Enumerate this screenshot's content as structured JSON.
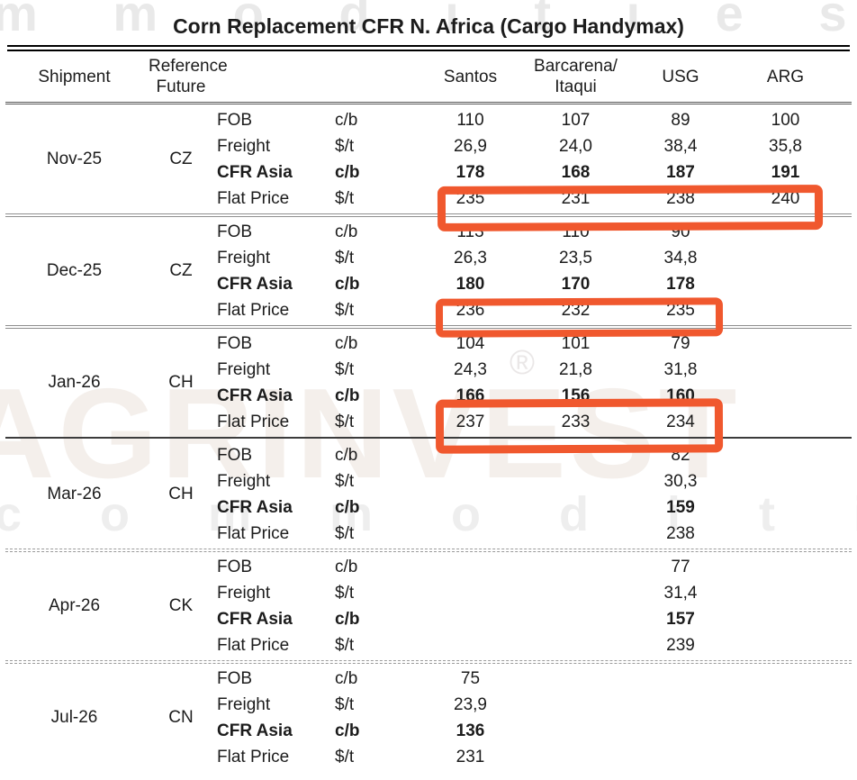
{
  "title": "Corn Replacement CFR N. Africa (Cargo Handymax)",
  "accent_color": "#f0582e",
  "watermark": {
    "top_text": "m m o d i t i e s",
    "brand_text": "AGRINVEST",
    "bottom_text": "c o m m o d i t i e s",
    "registered_mark": "®"
  },
  "header": {
    "shipment": "Shipment",
    "reference": "Reference\nFuture",
    "destinations": [
      "Santos",
      "Barcarena/\nItaqui",
      "USG",
      "ARG"
    ]
  },
  "blocks": [
    {
      "shipment": "Nov-25",
      "reference": "CZ",
      "rows": [
        {
          "label": "FOB",
          "unit": "c/b",
          "bold": false,
          "values": [
            "110",
            "107",
            "89",
            "100"
          ]
        },
        {
          "label": "Freight",
          "unit": "$/t",
          "bold": false,
          "values": [
            "26,9",
            "24,0",
            "38,4",
            "35,8"
          ]
        },
        {
          "label": "CFR Asia",
          "unit": "c/b",
          "bold": true,
          "values": [
            "178",
            "168",
            "187",
            "191"
          ]
        },
        {
          "label": "Flat Price",
          "unit": "$/t",
          "bold": false,
          "values": [
            "235",
            "231",
            "238",
            "240"
          ]
        }
      ]
    },
    {
      "shipment": "Dec-25",
      "reference": "CZ",
      "rows": [
        {
          "label": "FOB",
          "unit": "c/b",
          "bold": false,
          "values": [
            "113",
            "110",
            "90",
            ""
          ]
        },
        {
          "label": "Freight",
          "unit": "$/t",
          "bold": false,
          "values": [
            "26,3",
            "23,5",
            "34,8",
            ""
          ]
        },
        {
          "label": "CFR Asia",
          "unit": "c/b",
          "bold": true,
          "values": [
            "180",
            "170",
            "178",
            ""
          ]
        },
        {
          "label": "Flat Price",
          "unit": "$/t",
          "bold": false,
          "values": [
            "236",
            "232",
            "235",
            ""
          ]
        }
      ]
    },
    {
      "shipment": "Jan-26",
      "reference": "CH",
      "rows": [
        {
          "label": "FOB",
          "unit": "c/b",
          "bold": false,
          "values": [
            "104",
            "101",
            "79",
            ""
          ]
        },
        {
          "label": "Freight",
          "unit": "$/t",
          "bold": false,
          "values": [
            "24,3",
            "21,8",
            "31,8",
            ""
          ]
        },
        {
          "label": "CFR Asia",
          "unit": "c/b",
          "bold": true,
          "values": [
            "166",
            "156",
            "160",
            ""
          ]
        },
        {
          "label": "Flat Price",
          "unit": "$/t",
          "bold": false,
          "values": [
            "237",
            "233",
            "234",
            ""
          ]
        }
      ]
    },
    {
      "shipment": "Mar-26",
      "reference": "CH",
      "rows": [
        {
          "label": "FOB",
          "unit": "c/b",
          "bold": false,
          "values": [
            "",
            "",
            "82",
            ""
          ]
        },
        {
          "label": "Freight",
          "unit": "$/t",
          "bold": false,
          "values": [
            "",
            "",
            "30,3",
            ""
          ]
        },
        {
          "label": "CFR Asia",
          "unit": "c/b",
          "bold": true,
          "values": [
            "",
            "",
            "159",
            ""
          ]
        },
        {
          "label": "Flat Price",
          "unit": "$/t",
          "bold": false,
          "values": [
            "",
            "",
            "238",
            ""
          ]
        }
      ]
    },
    {
      "shipment": "Apr-26",
      "reference": "CK",
      "rows": [
        {
          "label": "FOB",
          "unit": "c/b",
          "bold": false,
          "values": [
            "",
            "",
            "77",
            ""
          ]
        },
        {
          "label": "Freight",
          "unit": "$/t",
          "bold": false,
          "values": [
            "",
            "",
            "31,4",
            ""
          ]
        },
        {
          "label": "CFR Asia",
          "unit": "c/b",
          "bold": true,
          "values": [
            "",
            "",
            "157",
            ""
          ]
        },
        {
          "label": "Flat Price",
          "unit": "$/t",
          "bold": false,
          "values": [
            "",
            "",
            "239",
            ""
          ]
        }
      ]
    },
    {
      "shipment": "Jul-26",
      "reference": "CN",
      "rows": [
        {
          "label": "FOB",
          "unit": "c/b",
          "bold": false,
          "values": [
            "75",
            "",
            "",
            ""
          ]
        },
        {
          "label": "Freight",
          "unit": "$/t",
          "bold": false,
          "values": [
            "23,9",
            "",
            "",
            ""
          ]
        },
        {
          "label": "CFR Asia",
          "unit": "c/b",
          "bold": true,
          "values": [
            "136",
            "",
            "",
            ""
          ]
        },
        {
          "label": "Flat Price",
          "unit": "$/t",
          "bold": false,
          "values": [
            "231",
            "",
            "",
            ""
          ]
        }
      ]
    }
  ],
  "highlights": [
    {
      "name": "highlight-box-nov25-flat-price"
    },
    {
      "name": "highlight-box-dec25-flat-price"
    },
    {
      "name": "highlight-box-jan26-cfr-flat-price"
    }
  ]
}
